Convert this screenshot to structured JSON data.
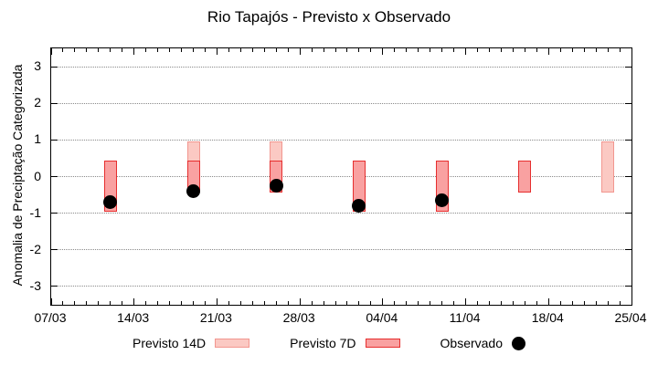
{
  "chart_data": {
    "type": "candlestick-comparison",
    "title": "Rio Tapajós - Previsto x Observado",
    "ylabel": "Anomalia de Preciptação Categorizada",
    "ylim": [
      -3.5,
      3.5
    ],
    "yticks": [
      3,
      2,
      1,
      0,
      -1,
      -2,
      -3
    ],
    "grid": true,
    "x_axis": {
      "total_days": 49,
      "minor_tick_every_days": 1,
      "major_tick_every_days": 7,
      "major_labels": [
        "07/03",
        "14/03",
        "21/03",
        "28/03",
        "04/04",
        "11/04",
        "18/04",
        "25/04"
      ]
    },
    "clusters": [
      {
        "date": "12/03",
        "day": 5,
        "previsto_14d": null,
        "previsto_7d": [
          -0.97,
          0.43
        ],
        "observado": -0.7
      },
      {
        "date": "19/03",
        "day": 12,
        "previsto_14d": [
          -0.43,
          0.97
        ],
        "previsto_7d": [
          -0.43,
          0.43
        ],
        "observado": -0.4
      },
      {
        "date": "26/03",
        "day": 19,
        "previsto_14d": [
          -0.43,
          0.97
        ],
        "previsto_7d": [
          -0.43,
          0.43
        ],
        "observado": -0.25
      },
      {
        "date": "02/04",
        "day": 26,
        "previsto_14d": null,
        "previsto_7d": [
          -0.97,
          0.43
        ],
        "observado": -0.8
      },
      {
        "date": "09/04",
        "day": 33,
        "previsto_14d": null,
        "previsto_7d": [
          -0.97,
          0.43
        ],
        "observado": -0.65
      },
      {
        "date": "16/04",
        "day": 40,
        "previsto_14d": null,
        "previsto_7d": [
          -0.43,
          0.43
        ],
        "observado": null
      },
      {
        "date": "23/04",
        "day": 47,
        "previsto_14d": [
          -0.43,
          0.97
        ],
        "previsto_7d": null,
        "observado": null
      }
    ],
    "legend": [
      {
        "label": "Previsto 14D",
        "type": "box",
        "fill": "#fbc9c3",
        "border": "#f2968f"
      },
      {
        "label": "Previsto 7D",
        "type": "box",
        "fill": "#f9a1a1",
        "border": "#e62e2e"
      },
      {
        "label": "Observado",
        "type": "circle",
        "fill": "#000000",
        "border": "#000000"
      }
    ],
    "colors": {
      "p14_fill": "#fbc9c3",
      "p14_border": "#f2968f",
      "p7_fill": "#f9a1a1",
      "p7_border": "#e62e2e",
      "obs": "#000000",
      "grid": "#8a8a8a",
      "axis": "#000000"
    }
  }
}
